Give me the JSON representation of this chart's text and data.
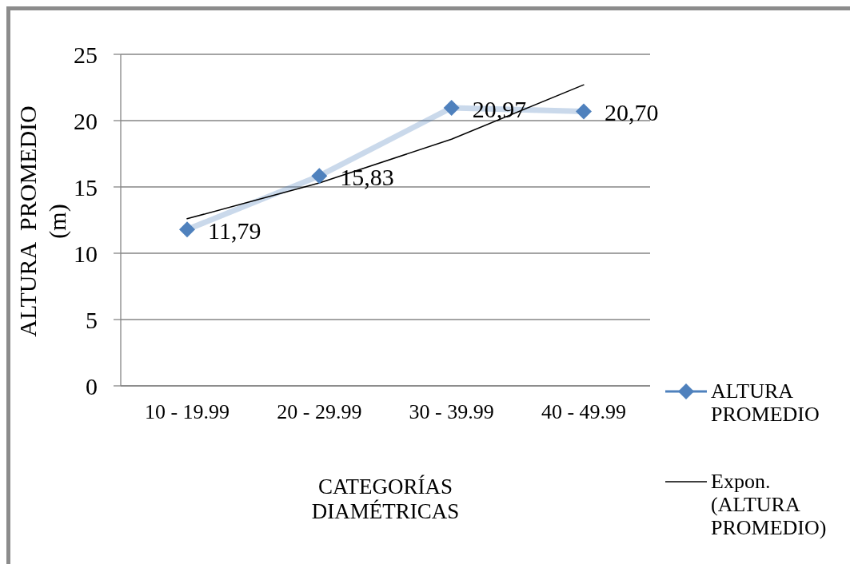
{
  "chart_data": {
    "type": "line",
    "xlabel": "CATEGORÍAS DIAMÉTRICAS",
    "ylabel": "ALTURA PROMEDIO (m)",
    "categories": [
      "10 - 19.99",
      "20 - 29.99",
      "30 - 39.99",
      "40 - 49.99"
    ],
    "series": [
      {
        "name": "ALTURA PROMEDIO",
        "color": "#4f81bd",
        "values": [
          11.79,
          15.83,
          20.97,
          20.7
        ],
        "value_labels": [
          "11,79",
          "15,83",
          "20,97",
          "20,70"
        ]
      },
      {
        "name": "Expon. (ALTURA PROMEDIO)",
        "type": "line",
        "color": "#000000",
        "values": [
          12.6,
          15.3,
          18.6,
          22.7
        ],
        "marker": "none"
      }
    ],
    "ylim": [
      0,
      25
    ],
    "yticks": [
      0,
      5,
      10,
      15,
      20,
      25
    ],
    "grid": "y",
    "legend": "right",
    "marker": "diamond"
  }
}
